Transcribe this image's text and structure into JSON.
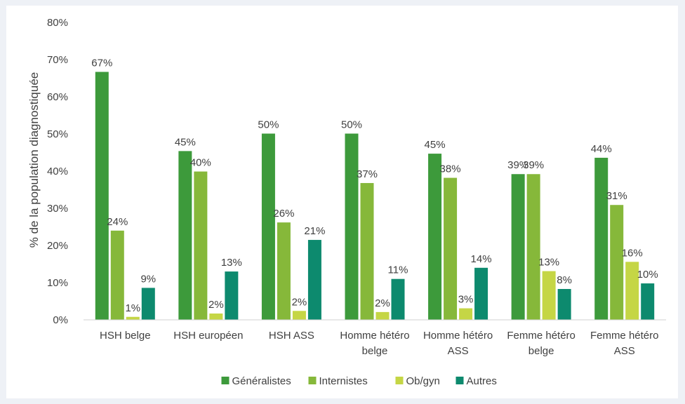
{
  "chart_data": {
    "type": "bar",
    "title": "",
    "xlabel": "",
    "ylabel": "% de la population diagnostiquée",
    "ylim": [
      0,
      80
    ],
    "ytick_step": 10,
    "ytick_suffix": "%",
    "grid": false,
    "legend": "bottom",
    "categories": [
      [
        "HSH belge"
      ],
      [
        "HSH européen"
      ],
      [
        "HSH ASS"
      ],
      [
        "Homme hétéro",
        "belge"
      ],
      [
        "Homme hétéro",
        "ASS"
      ],
      [
        "Femme hétéro",
        "belge"
      ],
      [
        "Femme hétéro",
        "ASS"
      ]
    ],
    "series": [
      {
        "name": "Généralistes",
        "color": "#3d9a3b",
        "values": [
          66.7,
          45.4,
          50.1,
          50.1,
          44.7,
          39.2,
          43.6
        ],
        "labels": [
          "67%",
          "45%",
          "50%",
          "50%",
          "45%",
          "39%",
          "44%"
        ]
      },
      {
        "name": "Internistes",
        "color": "#86b83a",
        "values": [
          24.0,
          39.9,
          26.2,
          36.8,
          38.2,
          39.2,
          30.9
        ],
        "labels": [
          "24%",
          "40%",
          "26%",
          "37%",
          "38%",
          "39%",
          "31%"
        ]
      },
      {
        "name": "Ob/gyn",
        "color": "#c5d645",
        "values": [
          0.8,
          1.7,
          2.4,
          2.1,
          3.1,
          13.1,
          15.6
        ],
        "labels": [
          "1%",
          "2%",
          "2%",
          "2%",
          "3%",
          "13%",
          "16%"
        ]
      },
      {
        "name": "Autres",
        "color": "#0d8a6e",
        "values": [
          8.6,
          13.0,
          21.5,
          11.0,
          14.0,
          8.3,
          9.8
        ],
        "labels": [
          "9%",
          "13%",
          "21%",
          "11%",
          "14%",
          "8%",
          "10%"
        ]
      }
    ]
  }
}
